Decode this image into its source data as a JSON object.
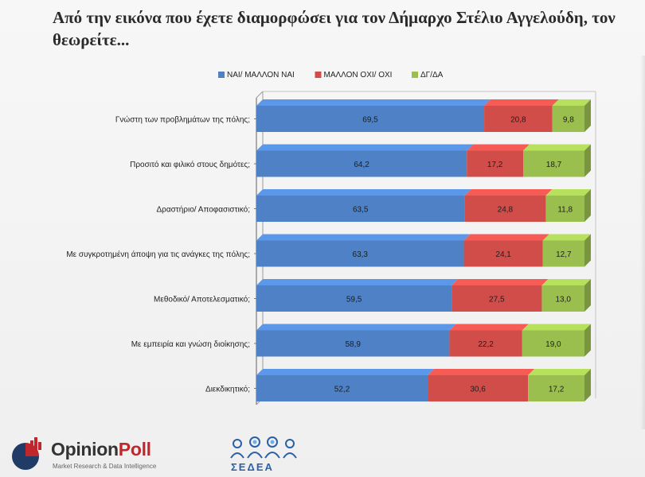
{
  "title": "Από την εικόνα που έχετε διαμορφώσει για τον Δήμαρχο Στέλιο Αγγελούδη, τον θεωρείτε...",
  "colors": {
    "yes": "#4e81c6",
    "no": "#d14d49",
    "dk": "#9bbf4f",
    "background": "#f4f4f4"
  },
  "chart_data": {
    "type": "bar",
    "orientation": "horizontal",
    "stacked": true,
    "percent_stacked": true,
    "three_d": true,
    "legend_position": "top",
    "categories": [
      "Γνώστη των προβλημάτων της πόλης;",
      "Προσιτό και φιλικό στους δημότες;",
      "Δραστήριο/ Αποφασιστικό;",
      "Με συγκροτημένη άποψη για τις ανάγκες της πόλης;",
      "Μεθοδικό/ Αποτελεσματικό;",
      "Με εμπειρία και γνώση διοίκησης;",
      "Διεκδικητικό;"
    ],
    "series": [
      {
        "name": "ΝΑΙ/ ΜΑΛΛΟΝ ΝΑΙ",
        "color": "#4e81c6",
        "values": [
          69.5,
          64.2,
          63.5,
          63.3,
          59.5,
          58.9,
          52.2
        ],
        "labels": [
          "69,5",
          "64,2",
          "63,5",
          "63,3",
          "59,5",
          "58,9",
          "52,2"
        ]
      },
      {
        "name": "ΜΑΛΛΟΝ ΟΧΙ/ ΟΧΙ",
        "color": "#d14d49",
        "values": [
          20.8,
          17.2,
          24.8,
          24.1,
          27.5,
          22.2,
          30.6
        ],
        "labels": [
          "20,8",
          "17,2",
          "24,8",
          "24,1",
          "27,5",
          "22,2",
          "30,6"
        ]
      },
      {
        "name": "ΔΓ/ΔΑ",
        "color": "#9bbf4f",
        "values": [
          9.8,
          18.7,
          11.8,
          12.7,
          13.0,
          19.0,
          17.2
        ],
        "labels": [
          "9,8",
          "18,7",
          "11,8",
          "12,7",
          "13,0",
          "19,0",
          "17,2"
        ]
      }
    ]
  },
  "footer": {
    "opinionpoll": {
      "name_part1": "Opinion",
      "name_part2": "Poll",
      "tagline": "Market Research & Data Intelligence"
    },
    "sedea": {
      "name": "ΣΕΔΕΑ"
    }
  }
}
